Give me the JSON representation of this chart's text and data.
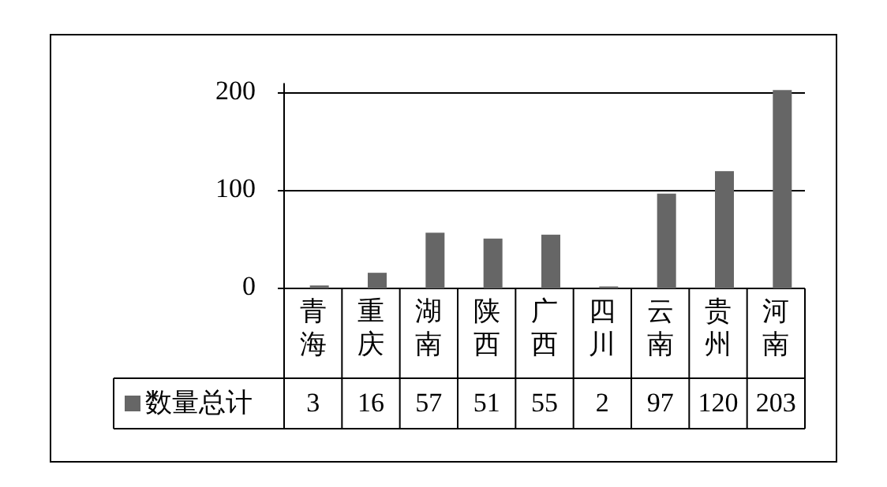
{
  "chart_data": {
    "type": "bar",
    "categories": [
      "青海",
      "重庆",
      "湖南",
      "陕西",
      "广西",
      "四川",
      "云南",
      "贵州",
      "河南"
    ],
    "series": [
      {
        "name": "数量总计",
        "color": "#666666",
        "values": [
          3,
          16,
          57,
          51,
          55,
          2,
          97,
          120,
          203
        ]
      }
    ],
    "ylim": [
      0,
      210
    ],
    "yticks": [
      0,
      100,
      200
    ],
    "grid": "y",
    "legend": "bottom",
    "data_labels": true
  }
}
